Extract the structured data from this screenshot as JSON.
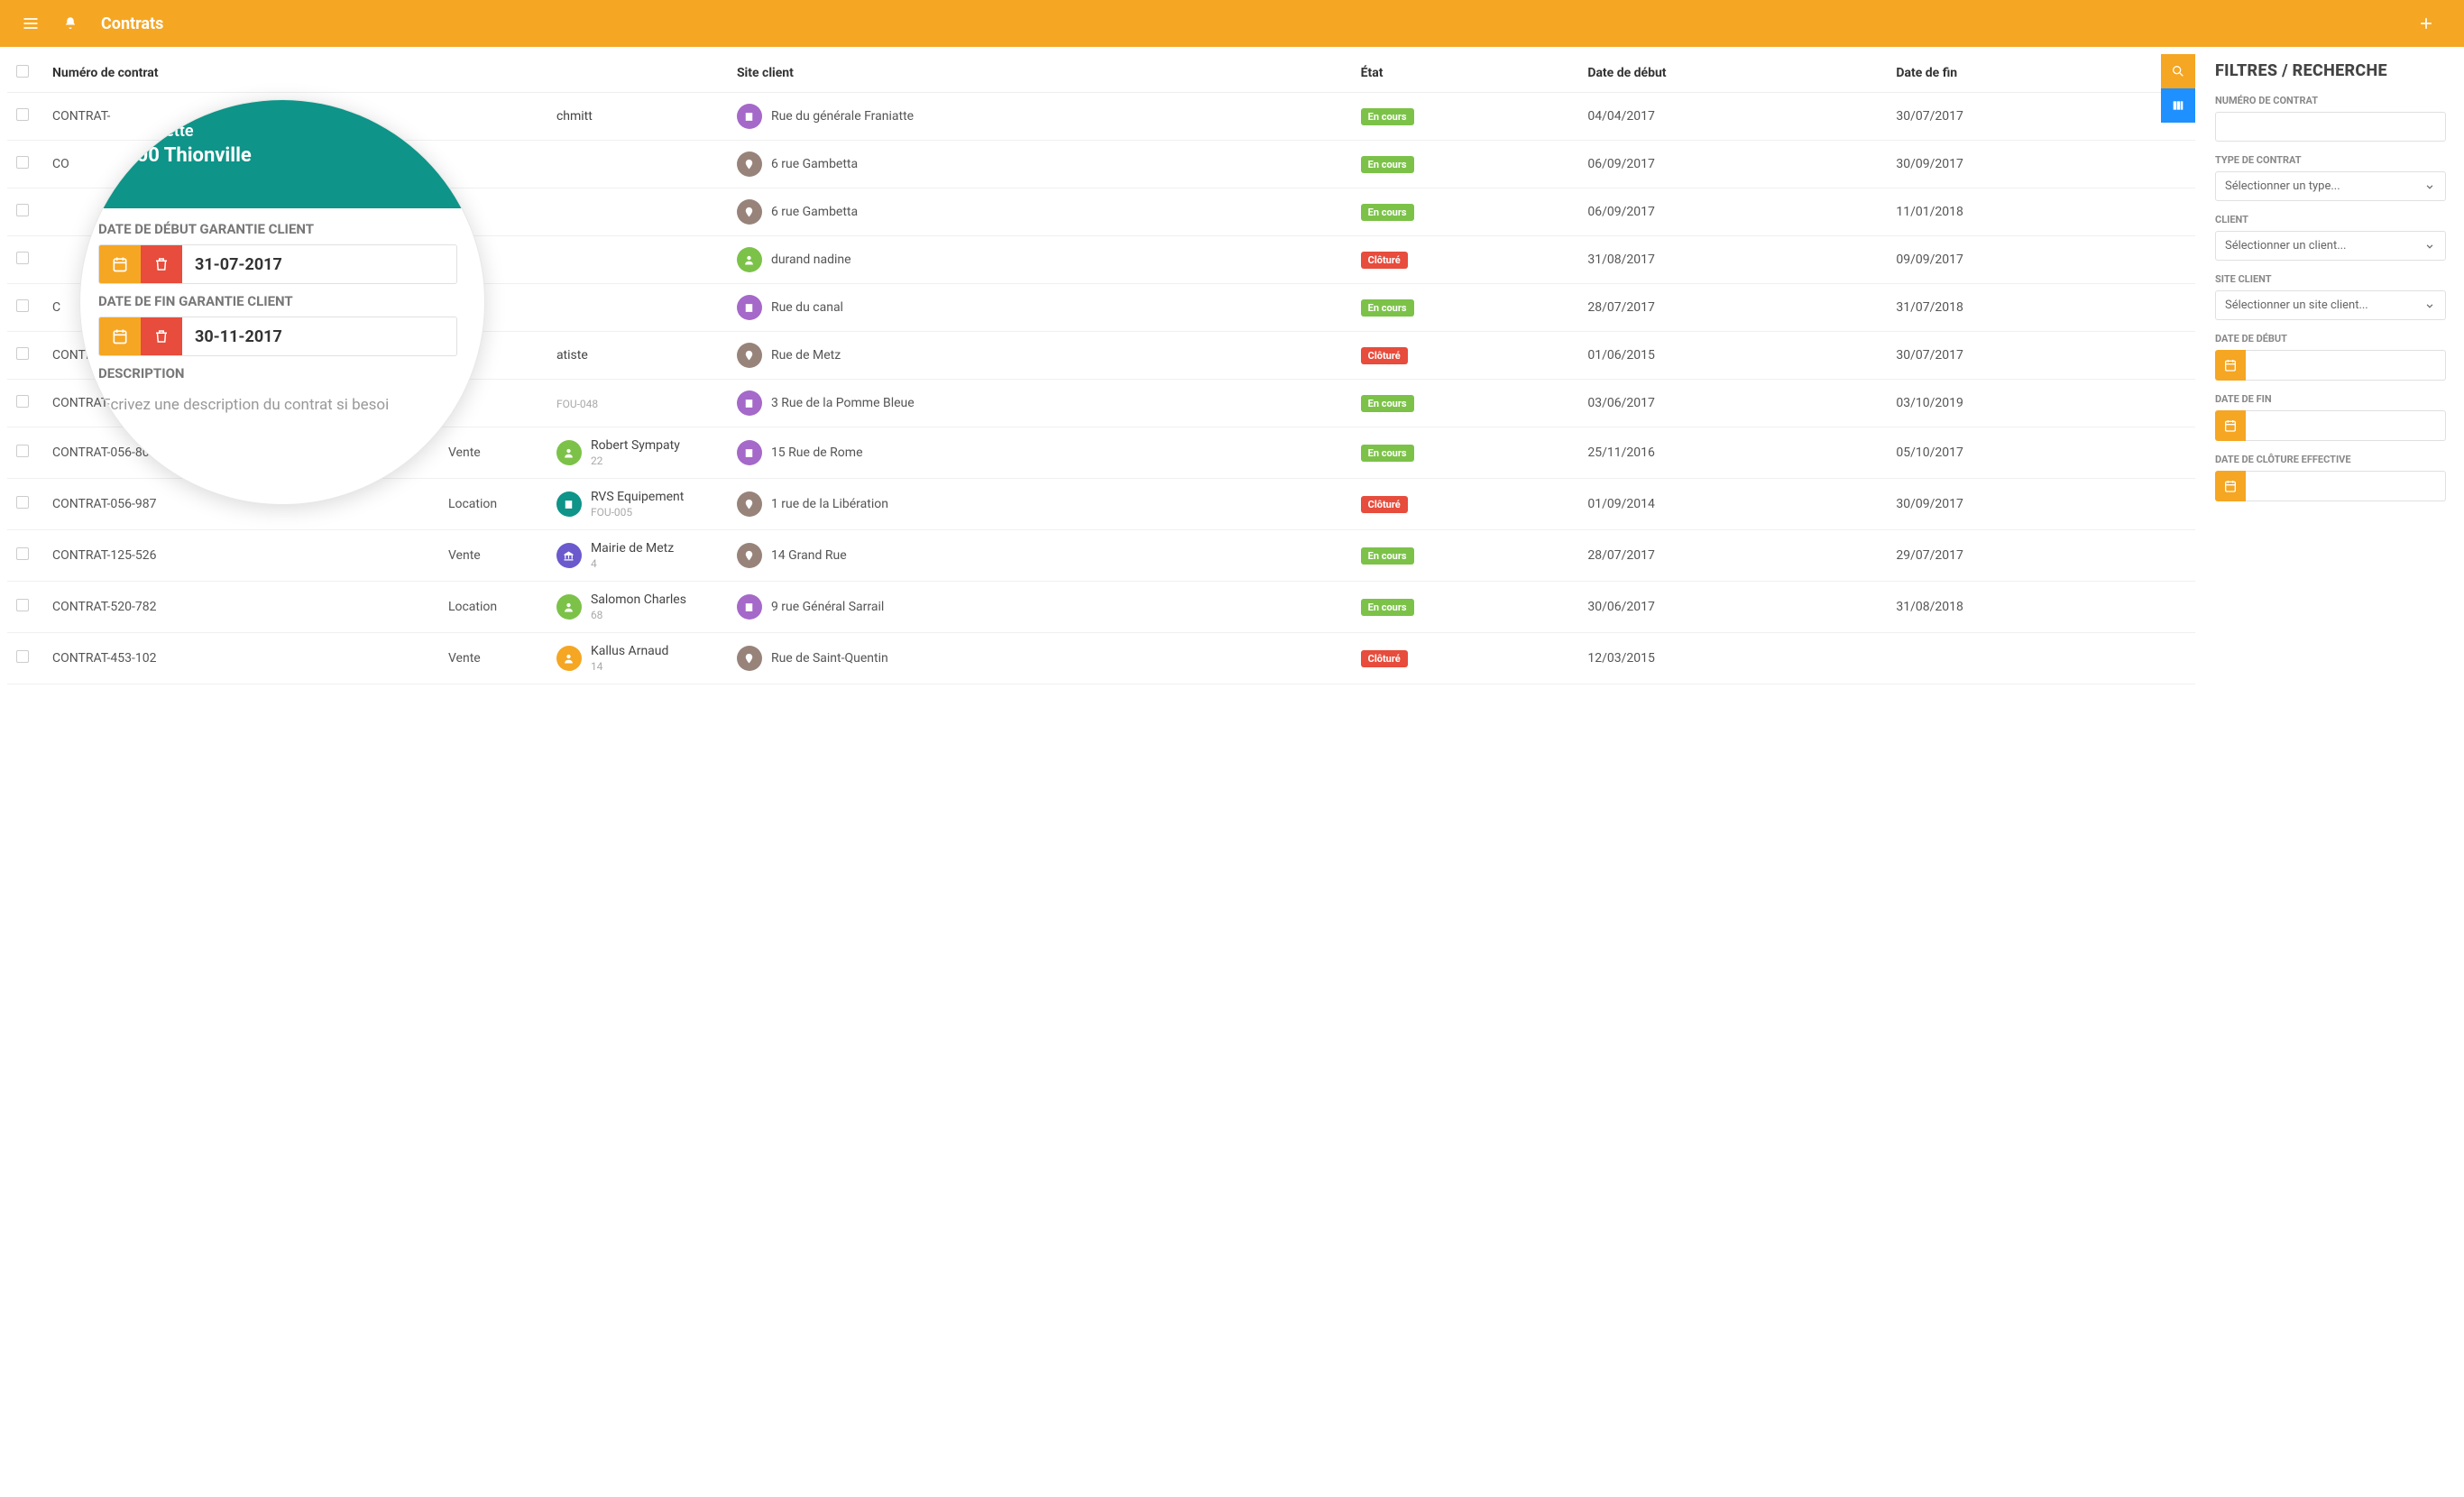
{
  "topbar": {
    "title": "Contrats"
  },
  "columns": {
    "num": "Numéro de contrat",
    "site": "Site client",
    "etat": "État",
    "debut": "Date de début",
    "fin": "Date de fin"
  },
  "status": {
    "encours": {
      "label": "En cours",
      "bg": "#7cc249"
    },
    "cloture": {
      "label": "Clôturé",
      "bg": "#e74c3c"
    }
  },
  "iconColors": {
    "green": "#7cc249",
    "teal": "#0e9488",
    "purple": "#a569c9",
    "brown": "#98837a",
    "orange": "#f5a623",
    "indigo": "#6a5acd"
  },
  "rows": [
    {
      "num": "CONTRAT-",
      "client": "chmitt",
      "clientSub": "",
      "clientIcon": "",
      "site": "Rue du générale Franiatte",
      "siteIcon": "building-purple",
      "status": "encours",
      "debut": "04/04/2017",
      "fin": "30/07/2017"
    },
    {
      "num": "CO",
      "client": "",
      "clientSub": "",
      "clientIcon": "",
      "site": "6 rue Gambetta",
      "siteIcon": "pin-brown",
      "status": "encours",
      "debut": "06/09/2017",
      "fin": "30/09/2017"
    },
    {
      "num": "",
      "client": "",
      "clientSub": "",
      "clientIcon": "",
      "site": "6 rue Gambetta",
      "siteIcon": "pin-brown",
      "status": "encours",
      "debut": "06/09/2017",
      "fin": "11/01/2018"
    },
    {
      "num": "",
      "client": "",
      "clientSub": "",
      "clientIcon": "",
      "site": "durand nadine",
      "siteIcon": "person-green",
      "status": "cloture",
      "debut": "31/08/2017",
      "fin": "09/09/2017"
    },
    {
      "num": "C",
      "client": "",
      "clientSub": "",
      "clientIcon": "",
      "site": "Rue du canal",
      "siteIcon": "building-purple",
      "status": "encours",
      "debut": "28/07/2017",
      "fin": "31/07/2018"
    },
    {
      "num": "CONTRA",
      "client": "atiste",
      "clientSub": "",
      "clientIcon": "",
      "site": "Rue de Metz",
      "siteIcon": "pin-brown",
      "status": "cloture",
      "debut": "01/06/2015",
      "fin": "30/07/2017"
    },
    {
      "num": "CONTRAT-510-006",
      "client": "",
      "clientSub": "FOU-048",
      "clientIcon": "",
      "site": "3 Rue de la Pomme Bleue",
      "siteIcon": "building-purple",
      "status": "encours",
      "debut": "03/06/2017",
      "fin": "03/10/2019"
    },
    {
      "num": "CONTRAT-056-804",
      "type": "Vente",
      "client": "Robert Sympaty",
      "clientSub": "22",
      "clientIcon": "person-green",
      "site": "15 Rue de Rome",
      "siteIcon": "building-purple",
      "status": "encours",
      "debut": "25/11/2016",
      "fin": "05/10/2017"
    },
    {
      "num": "CONTRAT-056-987",
      "type": "Location",
      "client": "RVS Equipement",
      "clientSub": "FOU-005",
      "clientIcon": "building-teal",
      "site": "1 rue de la Libération",
      "siteIcon": "pin-brown",
      "status": "cloture",
      "debut": "01/09/2014",
      "fin": "30/09/2017"
    },
    {
      "num": "CONTRAT-125-526",
      "type": "Vente",
      "client": "Mairie de Metz",
      "clientSub": "4",
      "clientIcon": "bank-indigo",
      "site": "14 Grand Rue",
      "siteIcon": "pin-brown",
      "status": "encours",
      "debut": "28/07/2017",
      "fin": "29/07/2017"
    },
    {
      "num": "CONTRAT-520-782",
      "type": "Location",
      "client": "Salomon Charles",
      "clientSub": "68",
      "clientIcon": "person-green",
      "site": "9 rue Général Sarrail",
      "siteIcon": "building-purple",
      "status": "encours",
      "debut": "30/06/2017",
      "fin": "31/08/2018"
    },
    {
      "num": "CONTRAT-453-102",
      "type": "Vente",
      "client": "Kallus Arnaud",
      "clientSub": "14",
      "clientIcon": "person-orange",
      "site": "Rue de Saint-Quentin",
      "siteIcon": "pin-brown",
      "status": "cloture",
      "debut": "12/03/2015",
      "fin": ""
    }
  ],
  "filters": {
    "title": "FILTRES / RECHERCHE",
    "num_label": "NUMÉRO DE CONTRAT",
    "type_label": "TYPE DE CONTRAT",
    "type_placeholder": "Sélectionner un type...",
    "client_label": "CLIENT",
    "client_placeholder": "Sélectionner un client...",
    "site_label": "SITE CLIENT",
    "site_placeholder": "Sélectionner un site client...",
    "debut_label": "DATE DE DÉBUT",
    "fin_label": "DATE DE FIN",
    "cloture_label": "DATE DE CLÔTURE EFFECTIVE"
  },
  "magnifier": {
    "line1": "Lafayette",
    "line2": "100 Thionville",
    "debut_label": "DATE DE DÉBUT GARANTIE CLIENT",
    "debut_value": "31-07-2017",
    "fin_label": "DATE DE FIN GARANTIE CLIENT",
    "fin_value": "30-11-2017",
    "desc_label": "DESCRIPTION",
    "desc_placeholder": "Ecrivez une description du contrat si besoi"
  },
  "colors": {
    "topbar": "#f5a623",
    "searchBtn": "#f5a623",
    "columnsBtn": "#1e90ff",
    "trash": "#e74c3c"
  }
}
